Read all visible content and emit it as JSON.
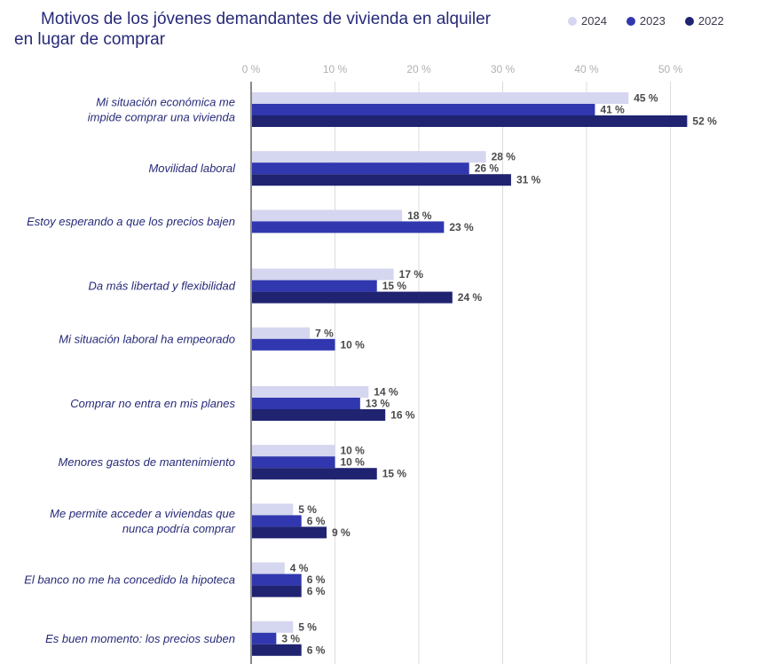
{
  "chart_data": {
    "type": "bar",
    "orientation": "horizontal",
    "title": "Motivos de los jóvenes demandantes de vivienda en alquiler en lugar de comprar",
    "title_lines": [
      "Motivos de los jóvenes demandantes de vivienda en alquiler",
      "en lugar de comprar"
    ],
    "xlim": [
      0,
      50
    ],
    "x_ticks": [
      "0 %",
      "10 %",
      "20 %",
      "30 %",
      "40 %",
      "50 %"
    ],
    "x_tick_values": [
      0,
      10,
      20,
      30,
      40,
      50
    ],
    "grid": true,
    "legend_position": "top-right",
    "categories": [
      [
        "Mi situación económica me",
        "impide comprar una vivienda"
      ],
      [
        "Movilidad laboral"
      ],
      [
        "Estoy esperando a que los precios bajen"
      ],
      [
        "Da más libertad y flexibilidad"
      ],
      [
        "Mi situación laboral ha empeorado"
      ],
      [
        "Comprar no entra en mis planes"
      ],
      [
        "Menores gastos de mantenimiento"
      ],
      [
        "Me permite acceder a viviendas que",
        "nunca podría comprar"
      ],
      [
        "El banco no me ha concedido la hipoteca"
      ],
      [
        "Es buen momento: los precios suben"
      ]
    ],
    "series": [
      {
        "name": "2024",
        "color": "#d5d6ef",
        "values": [
          45,
          28,
          18,
          17,
          7,
          14,
          10,
          5,
          4,
          5
        ]
      },
      {
        "name": "2023",
        "color": "#3137ae",
        "values": [
          41,
          26,
          23,
          15,
          10,
          13,
          10,
          6,
          6,
          3
        ]
      },
      {
        "name": "2022",
        "color": "#1f2370",
        "values": [
          52,
          31,
          null,
          24,
          null,
          16,
          15,
          9,
          6,
          6
        ]
      }
    ],
    "value_suffix": " %"
  }
}
